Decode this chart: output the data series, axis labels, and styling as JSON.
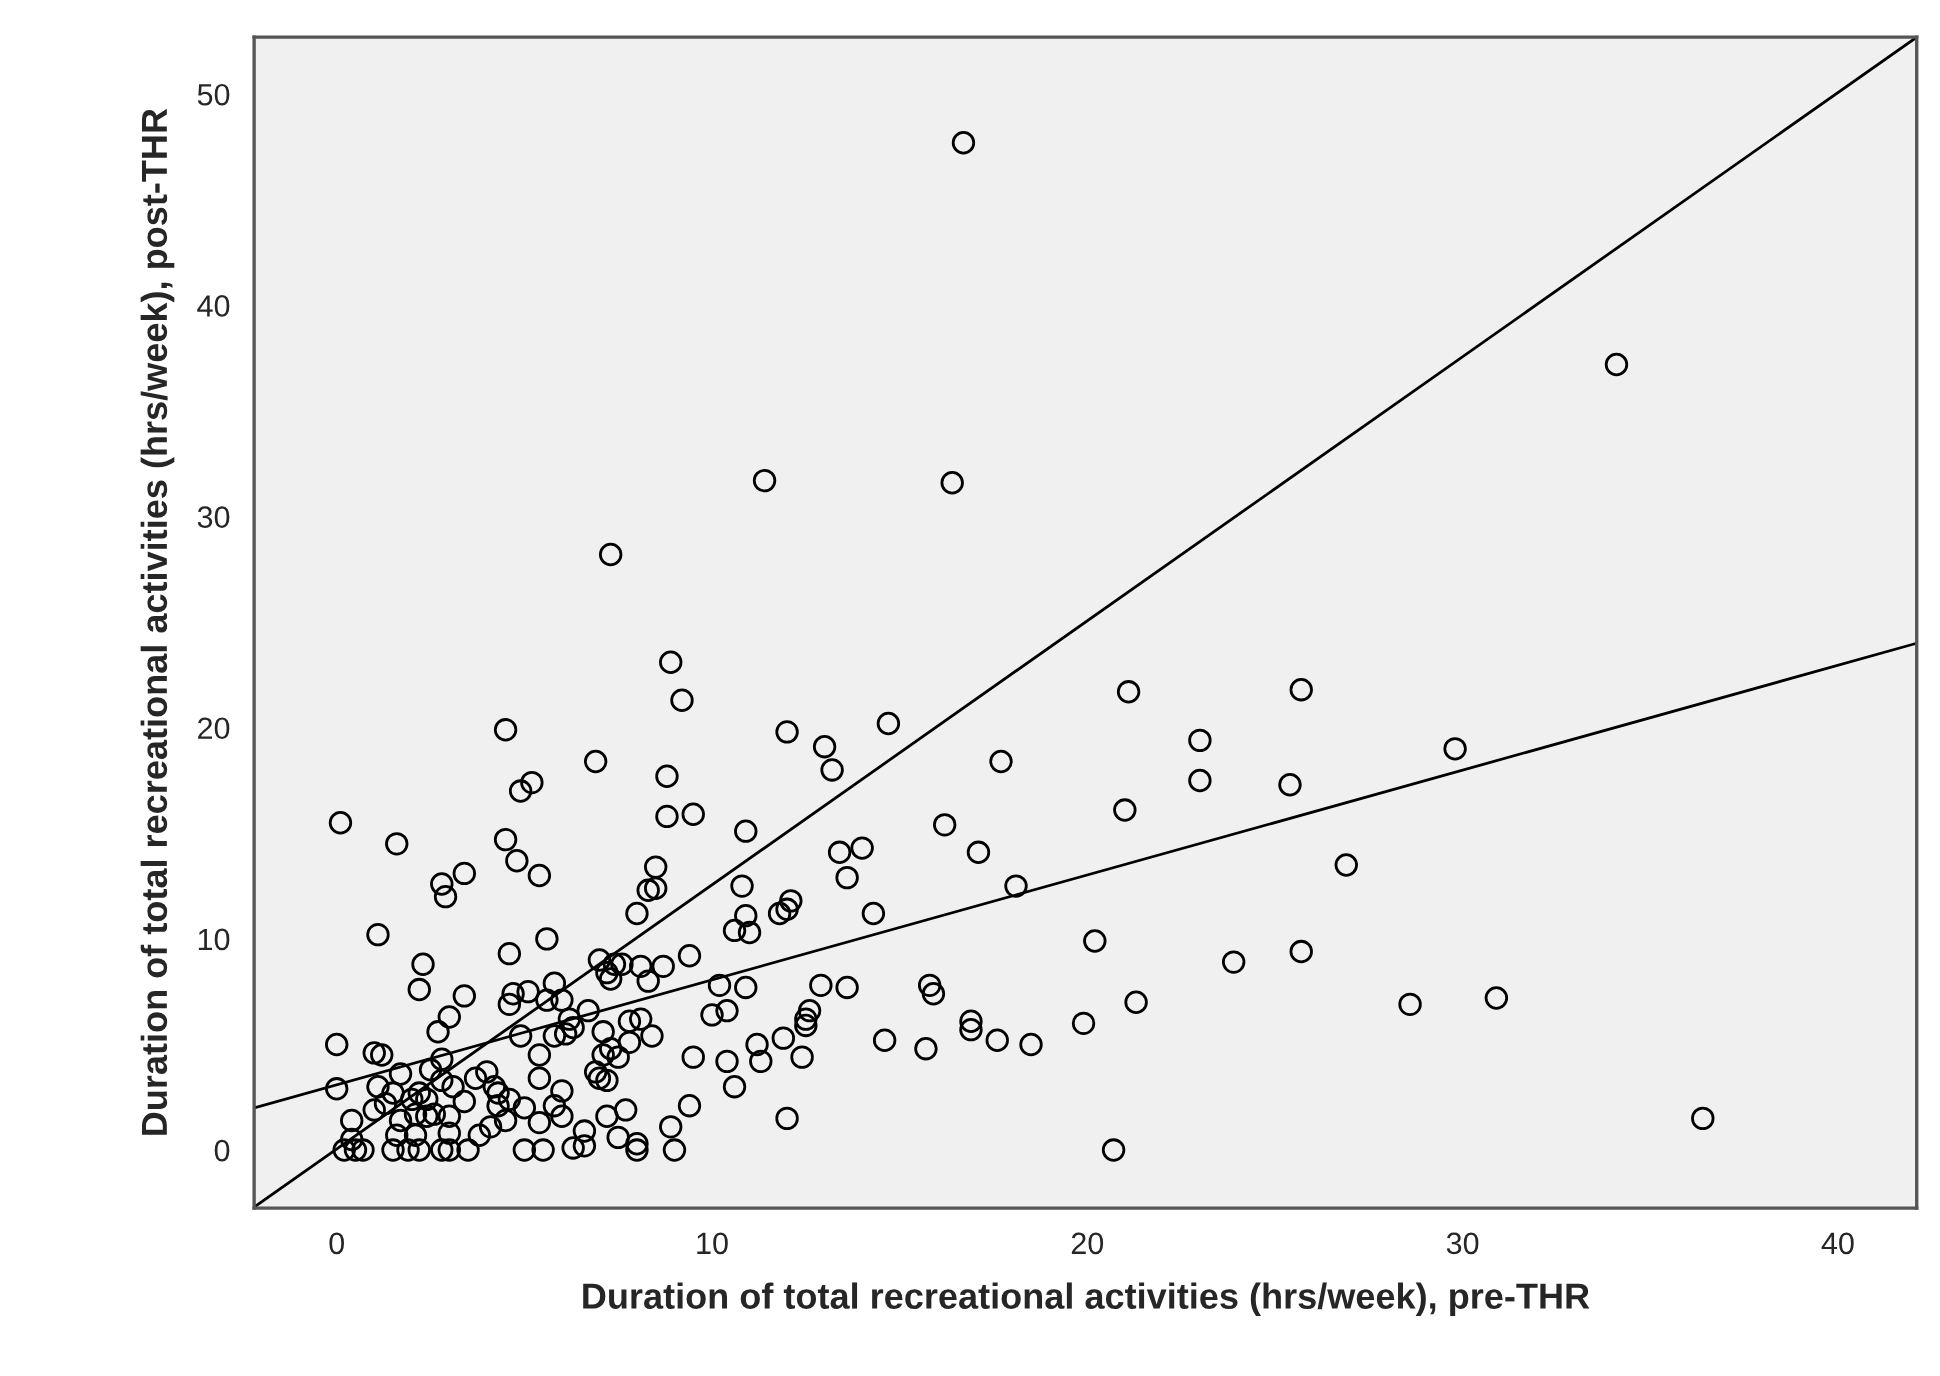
{
  "chart_data": {
    "type": "scatter",
    "xlabel": "Duration of total recreational activities (hrs/week), pre-THR",
    "ylabel": "Duration of total recreational activities (hrs/week), post-THR",
    "xlim": [
      -2.2,
      42.1
    ],
    "ylim": [
      -2.75,
      52.7
    ],
    "xticks": [
      0,
      10,
      20,
      30,
      40
    ],
    "yticks": [
      0,
      10,
      20,
      30,
      40,
      50
    ],
    "grid": false,
    "series": [
      {
        "marker": "circle",
        "color": "#000000",
        "x": [
          8.9,
          9.2,
          4.5,
          12.0,
          13.0,
          13.2,
          14.7,
          17.7,
          6.9,
          8.8,
          5.2,
          4.9,
          0.1,
          1.6,
          4.5,
          4.8,
          5.4,
          3.4,
          2.8,
          2.9,
          8.8,
          9.5,
          10.9,
          16.2,
          17.1,
          13.4,
          14.0,
          13.6,
          18.1,
          8.5,
          8.3,
          8.5,
          8.0,
          10.8,
          10.9,
          10.6,
          11.0,
          11.8,
          12.0,
          12.1,
          14.3,
          1.1,
          5.6,
          4.6,
          9.4,
          2.3,
          2.2,
          3.4,
          4.7,
          5.1,
          4.6,
          3.0,
          2.7,
          0.0,
          1.0,
          1.2,
          5.8,
          5.6,
          6.0,
          6.7,
          6.2,
          6.3,
          6.1,
          5.8,
          4.9,
          7.1,
          7.0,
          7.2,
          7.4,
          7.6,
          8.1,
          8.7,
          8.3,
          7.3,
          7.8,
          8.1,
          8.4,
          7.8,
          7.3,
          7.5,
          7.1,
          5.4,
          5.4,
          6.9,
          7.0,
          7.2,
          6.0,
          10.2,
          10.9,
          10.0,
          10.4,
          12.9,
          13.6,
          15.8,
          15.9,
          12.6,
          12.5,
          12.5,
          11.9,
          11.2,
          11.3,
          12.4,
          10.4,
          9.5,
          10.6,
          14.6,
          15.7,
          16.9,
          16.9,
          17.6,
          18.5,
          12.0,
          9.4,
          8.9,
          9.0,
          8.0,
          8.0,
          7.5,
          7.2,
          7.7,
          6.6,
          6.6,
          6.3,
          5.5,
          5.0,
          6.0,
          5.8,
          5.4,
          5.0,
          4.6,
          4.3,
          4.5,
          4.1,
          3.8,
          3.5,
          3.0,
          2.8,
          2.2,
          1.9,
          1.5,
          0.7,
          0.5,
          0.2,
          0.4,
          0.4,
          0.0,
          1.1,
          1.7,
          1.0,
          1.3,
          1.5,
          2.0,
          2.2,
          2.4,
          2.6,
          2.1,
          1.7,
          1.6,
          2.1,
          3.0,
          3.0,
          3.4,
          3.1,
          2.8,
          2.5,
          2.8,
          3.7,
          4.0,
          4.2,
          4.3,
          2.4,
          21.1,
          25.7,
          23.0,
          23.0,
          25.4,
          21.0,
          29.8,
          26.9,
          20.2,
          23.9,
          25.7,
          21.3,
          19.9,
          28.6,
          30.9,
          36.4,
          20.7,
          16.7,
          11.4,
          16.4,
          7.3,
          34.1
        ],
        "values": [
          23.1,
          21.3,
          19.9,
          19.8,
          19.1,
          18.0,
          20.2,
          18.4,
          18.4,
          17.7,
          17.4,
          17.0,
          15.5,
          14.5,
          14.7,
          13.7,
          13.0,
          13.1,
          12.6,
          12.0,
          15.8,
          15.9,
          15.1,
          15.4,
          14.1,
          14.1,
          14.3,
          12.9,
          12.5,
          13.4,
          12.3,
          12.4,
          11.2,
          12.5,
          11.1,
          10.4,
          10.3,
          11.2,
          11.4,
          11.8,
          11.2,
          10.2,
          10.0,
          9.3,
          9.2,
          8.8,
          7.6,
          7.3,
          7.4,
          7.5,
          6.9,
          6.3,
          5.6,
          5.0,
          4.6,
          4.5,
          7.9,
          7.1,
          7.1,
          6.6,
          6.2,
          5.8,
          5.5,
          5.4,
          5.4,
          5.6,
          9.0,
          8.4,
          8.8,
          8.8,
          8.7,
          8.7,
          8.0,
          8.1,
          6.1,
          6.2,
          5.4,
          5.1,
          4.8,
          4.4,
          4.5,
          4.5,
          3.4,
          3.7,
          3.4,
          3.3,
          2.8,
          7.8,
          7.7,
          6.4,
          6.6,
          7.8,
          7.7,
          7.8,
          7.4,
          6.6,
          6.2,
          5.9,
          5.3,
          5.0,
          4.2,
          4.4,
          4.2,
          4.4,
          3.0,
          5.2,
          4.8,
          6.1,
          5.7,
          5.2,
          5.0,
          1.5,
          2.1,
          1.1,
          0.0,
          0.3,
          0.0,
          0.6,
          1.6,
          1.9,
          0.9,
          0.2,
          0.1,
          0.0,
          0.0,
          1.6,
          2.1,
          1.3,
          2.0,
          2.4,
          2.1,
          1.4,
          1.1,
          0.7,
          0.0,
          0.0,
          0.0,
          0.0,
          0.0,
          0.0,
          0.0,
          0.0,
          0.0,
          0.5,
          1.4,
          2.9,
          3.0,
          3.6,
          1.9,
          2.2,
          2.7,
          2.4,
          2.7,
          2.4,
          1.7,
          1.7,
          1.4,
          0.7,
          0.7,
          0.8,
          1.6,
          2.3,
          3.0,
          3.3,
          3.8,
          4.3,
          3.4,
          3.7,
          3.0,
          2.7,
          1.6,
          21.7,
          21.8,
          19.4,
          17.5,
          17.3,
          16.1,
          19.0,
          13.5,
          9.9,
          8.9,
          9.4,
          7.0,
          6.0,
          6.9,
          7.2,
          1.5,
          0.0,
          47.7,
          31.7,
          31.6,
          28.2,
          37.2
        ]
      },
      {
        "type": "line",
        "color": "#000000",
        "x": [
          -2.2,
          42.1
        ],
        "values": [
          -2.7,
          52.7
        ]
      },
      {
        "type": "line",
        "color": "#000000",
        "x": [
          -2.2,
          42.1
        ],
        "values": [
          2.0,
          24.0
        ]
      }
    ]
  }
}
